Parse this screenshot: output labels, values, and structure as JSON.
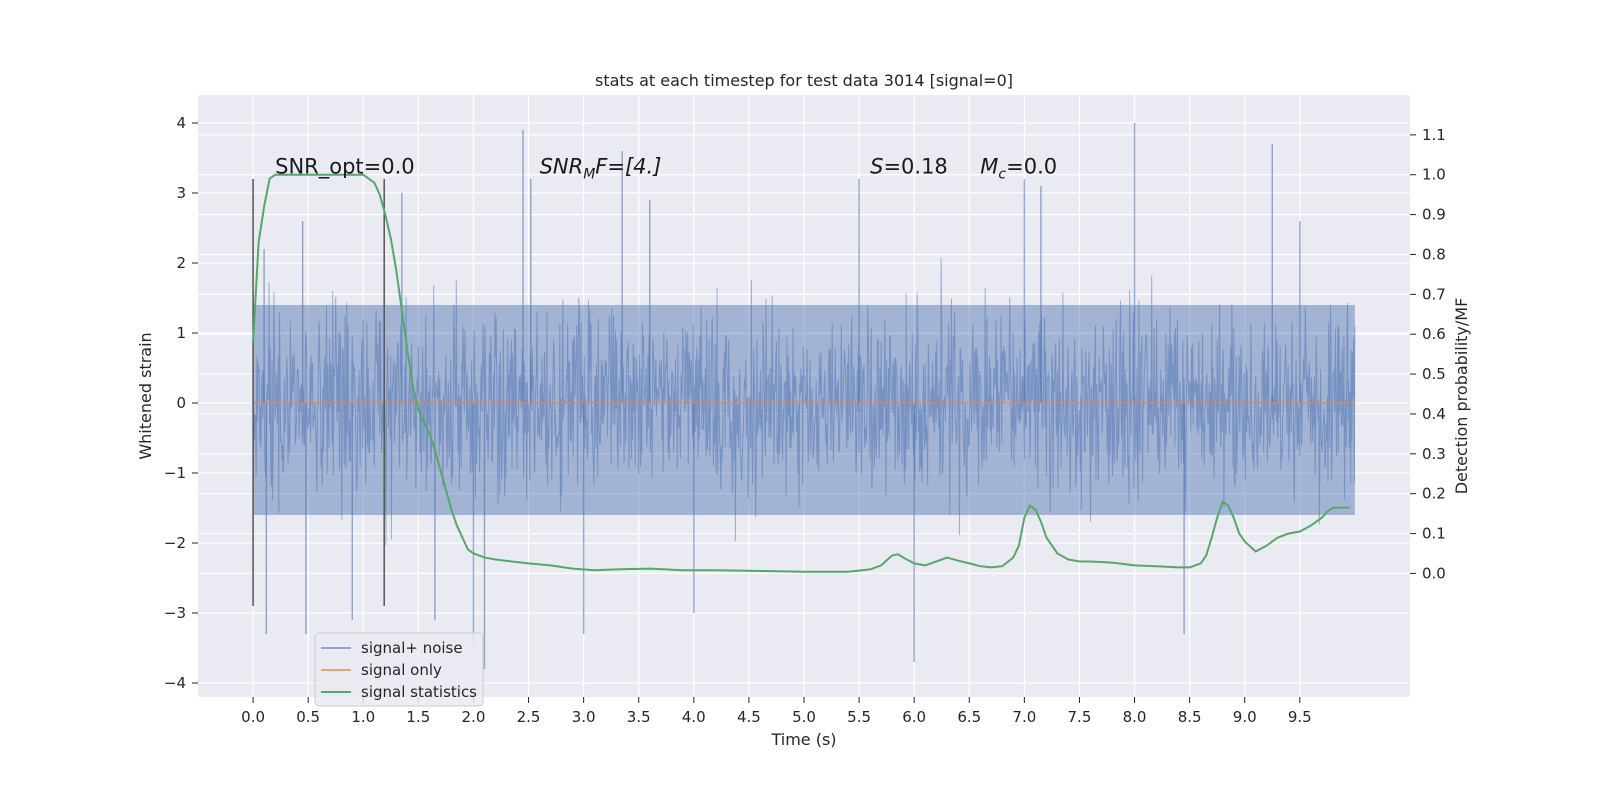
{
  "chart_data": {
    "type": "line",
    "title": "stats at each timestep for test data 3014 [signal=0]",
    "xlabel": "Time (s)",
    "ylabel": "Whitened strain",
    "y2label": "Detection probability/MF",
    "xlim": [
      -0.5,
      10.5
    ],
    "ylim": [
      -4.2,
      4.4
    ],
    "y2lim": [
      -0.31,
      1.2
    ],
    "x_ticks": [
      "0.0",
      "0.5",
      "1.0",
      "1.5",
      "2.0",
      "2.5",
      "3.0",
      "3.5",
      "4.0",
      "4.5",
      "5.0",
      "5.5",
      "6.0",
      "6.5",
      "7.0",
      "7.5",
      "8.0",
      "8.5",
      "9.0",
      "9.5"
    ],
    "y_ticks": [
      "4",
      "3",
      "2",
      "1",
      "0",
      "−1",
      "−2",
      "−3",
      "−4"
    ],
    "y2_ticks": [
      "1.1",
      "1.0",
      "0.9",
      "0.8",
      "0.7",
      "0.6",
      "0.5",
      "0.4",
      "0.3",
      "0.2",
      "0.1",
      "0.0"
    ],
    "grid": true,
    "legend_position": "lower-left",
    "colors": {
      "background": "#eaeaf2",
      "grid": "#ffffff",
      "noise": "#4c72b0",
      "signal_only": "#dd8452",
      "statistics": "#55a868",
      "vline": "#555555"
    },
    "annotations": [
      {
        "text": "SNR_opt=0.0",
        "x": 0.2,
        "y2": 1.0
      },
      {
        "text": "SNR",
        "sub": "M",
        "tail": "F=[4.]",
        "x": 2.6,
        "y2": 1.0,
        "italic": true
      },
      {
        "text": "S",
        "tail": "=0.18",
        "x": 5.6,
        "y2": 1.0,
        "italic": true
      },
      {
        "text": "M",
        "sub": "c",
        "tail": "=0.0",
        "x": 6.6,
        "y2": 1.0,
        "italic": true
      }
    ],
    "vertical_lines": [
      {
        "x": 0.0,
        "y_from": -2.9,
        "y_to": 3.2
      },
      {
        "x": 1.19,
        "y_from": -2.9,
        "y_to": 3.2
      }
    ],
    "series": [
      {
        "name": "signal+ noise",
        "description_band": {
          "x_start": 0.0,
          "x_end": 10.0,
          "dense_low": -1.6,
          "dense_high": 1.4
        },
        "spikes": [
          [
            0.1,
            2.2
          ],
          [
            0.12,
            -3.3
          ],
          [
            0.45,
            2.6
          ],
          [
            0.48,
            -3.3
          ],
          [
            0.9,
            -3.1
          ],
          [
            1.35,
            3.0
          ],
          [
            1.65,
            -3.1
          ],
          [
            2.0,
            -3.5
          ],
          [
            2.1,
            -3.8
          ],
          [
            2.45,
            3.9
          ],
          [
            2.52,
            3.2
          ],
          [
            3.0,
            -3.3
          ],
          [
            3.35,
            3.6
          ],
          [
            3.6,
            2.9
          ],
          [
            4.0,
            -3.0
          ],
          [
            5.5,
            3.2
          ],
          [
            6.0,
            -3.7
          ],
          [
            7.0,
            3.2
          ],
          [
            7.15,
            3.1
          ],
          [
            8.0,
            4.0
          ],
          [
            8.45,
            -3.3
          ],
          [
            9.25,
            3.7
          ],
          [
            9.5,
            2.6
          ]
        ]
      },
      {
        "name": "signal only",
        "x": [
          0.0,
          10.0
        ],
        "y": [
          0.0,
          0.0
        ]
      },
      {
        "name": "signal statistics",
        "axis": "right",
        "x": [
          0.0,
          0.05,
          0.1,
          0.15,
          0.2,
          0.3,
          0.5,
          0.7,
          0.9,
          1.0,
          1.05,
          1.1,
          1.15,
          1.2,
          1.25,
          1.3,
          1.35,
          1.4,
          1.45,
          1.5,
          1.55,
          1.6,
          1.65,
          1.7,
          1.75,
          1.8,
          1.85,
          1.9,
          1.95,
          2.0,
          2.1,
          2.2,
          2.35,
          2.5,
          2.7,
          2.9,
          3.1,
          3.3,
          3.6,
          3.9,
          4.2,
          4.6,
          5.0,
          5.4,
          5.6,
          5.7,
          5.8,
          5.85,
          5.9,
          6.0,
          6.1,
          6.2,
          6.3,
          6.4,
          6.5,
          6.6,
          6.7,
          6.8,
          6.9,
          6.95,
          7.0,
          7.05,
          7.1,
          7.15,
          7.2,
          7.3,
          7.4,
          7.5,
          7.6,
          7.8,
          8.0,
          8.2,
          8.4,
          8.5,
          8.6,
          8.65,
          8.7,
          8.75,
          8.8,
          8.85,
          8.9,
          8.95,
          9.0,
          9.1,
          9.2,
          9.3,
          9.4,
          9.5,
          9.6,
          9.7,
          9.75,
          9.8,
          9.85,
          9.9,
          9.95
        ],
        "y": [
          0.58,
          0.83,
          0.92,
          0.99,
          1.0,
          1.0,
          1.0,
          1.0,
          1.0,
          1.0,
          0.99,
          0.98,
          0.95,
          0.9,
          0.84,
          0.76,
          0.66,
          0.56,
          0.47,
          0.41,
          0.38,
          0.35,
          0.31,
          0.26,
          0.21,
          0.16,
          0.12,
          0.09,
          0.06,
          0.05,
          0.04,
          0.035,
          0.03,
          0.025,
          0.02,
          0.012,
          0.008,
          0.01,
          0.012,
          0.008,
          0.008,
          0.006,
          0.004,
          0.004,
          0.01,
          0.02,
          0.045,
          0.048,
          0.04,
          0.025,
          0.02,
          0.03,
          0.04,
          0.032,
          0.025,
          0.018,
          0.015,
          0.018,
          0.04,
          0.07,
          0.14,
          0.17,
          0.16,
          0.13,
          0.09,
          0.05,
          0.035,
          0.03,
          0.03,
          0.027,
          0.02,
          0.018,
          0.015,
          0.015,
          0.025,
          0.045,
          0.09,
          0.14,
          0.18,
          0.17,
          0.14,
          0.1,
          0.08,
          0.055,
          0.07,
          0.09,
          0.1,
          0.105,
          0.12,
          0.14,
          0.155,
          0.165,
          0.165,
          0.165,
          0.165
        ]
      }
    ]
  }
}
